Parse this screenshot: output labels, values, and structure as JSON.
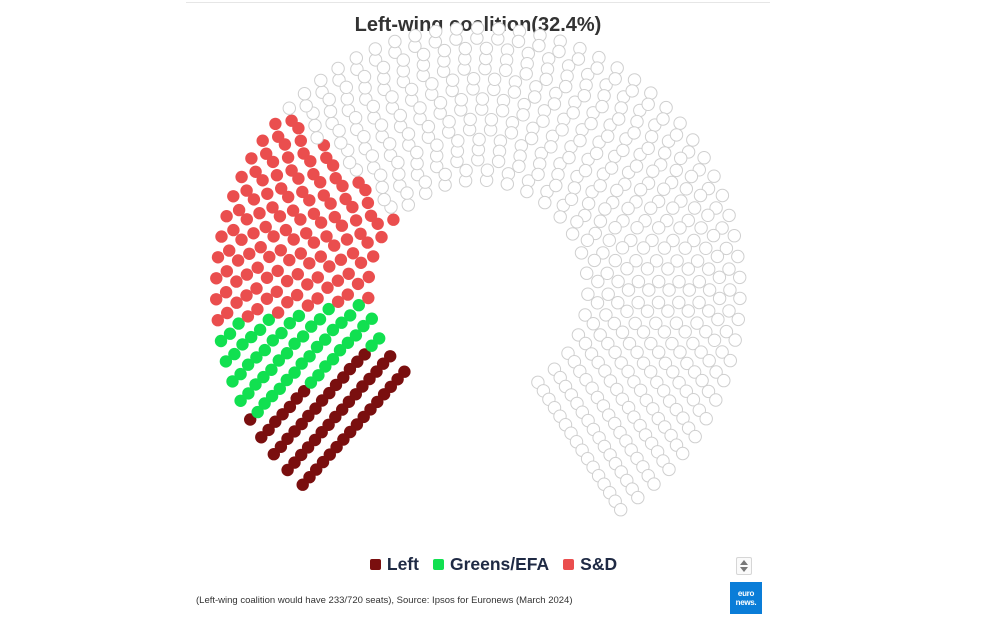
{
  "chart_data": {
    "type": "hemicycle",
    "title": "Left-wing coalition(32.4%)",
    "total_seats": 720,
    "rows": 16,
    "series": [
      {
        "name": "Left",
        "seats": 54,
        "color": "#7a0f0f"
      },
      {
        "name": "Greens/EFA",
        "seats": 55,
        "color": "#11e050"
      },
      {
        "name": "S&D",
        "seats": 124,
        "color": "#ea4e4e"
      }
    ],
    "coalition_seats": 233,
    "empty_color": "#ffffff",
    "empty_stroke": "#cfcfcf",
    "legend_position": "bottom-center",
    "footnote": "(Left-wing coalition would have 233/720 seats), Source: Ipsos for Euronews (March 2024)",
    "logo_text": [
      "euro",
      "news."
    ]
  }
}
